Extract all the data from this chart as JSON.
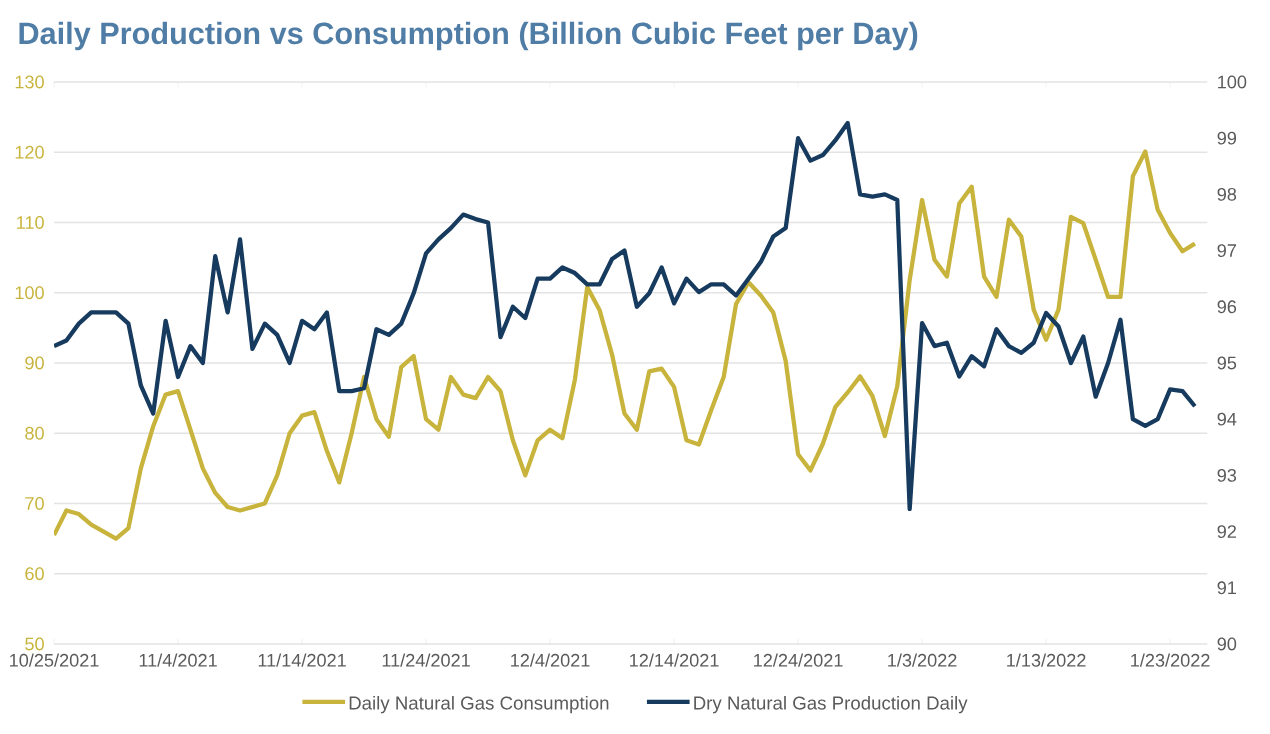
{
  "chart_data": {
    "type": "line",
    "title": "Daily Production vs Consumption (Billion Cubic Feet per Day)",
    "x": [
      "2021-10-25",
      "2021-10-26",
      "2021-10-27",
      "2021-10-28",
      "2021-10-29",
      "2021-10-30",
      "2021-10-31",
      "2021-11-01",
      "2021-11-02",
      "2021-11-03",
      "2021-11-04",
      "2021-11-05",
      "2021-11-06",
      "2021-11-07",
      "2021-11-08",
      "2021-11-09",
      "2021-11-10",
      "2021-11-11",
      "2021-11-12",
      "2021-11-13",
      "2021-11-14",
      "2021-11-15",
      "2021-11-16",
      "2021-11-17",
      "2021-11-18",
      "2021-11-19",
      "2021-11-20",
      "2021-11-21",
      "2021-11-22",
      "2021-11-23",
      "2021-11-24",
      "2021-11-25",
      "2021-11-26",
      "2021-11-27",
      "2021-11-28",
      "2021-11-29",
      "2021-11-30",
      "2021-12-01",
      "2021-12-02",
      "2021-12-03",
      "2021-12-04",
      "2021-12-05",
      "2021-12-06",
      "2021-12-07",
      "2021-12-08",
      "2021-12-09",
      "2021-12-10",
      "2021-12-11",
      "2021-12-12",
      "2021-12-13",
      "2021-12-14",
      "2021-12-15",
      "2021-12-16",
      "2021-12-17",
      "2021-12-18",
      "2021-12-19",
      "2021-12-20",
      "2021-12-21",
      "2021-12-22",
      "2021-12-23",
      "2021-12-24",
      "2021-12-25",
      "2021-12-26",
      "2021-12-27",
      "2021-12-28",
      "2021-12-29",
      "2021-12-30",
      "2021-12-31",
      "2022-01-01",
      "2022-01-02",
      "2022-01-03",
      "2022-01-04",
      "2022-01-05",
      "2022-01-06",
      "2022-01-07",
      "2022-01-08",
      "2022-01-09",
      "2022-01-10",
      "2022-01-11",
      "2022-01-12",
      "2022-01-13",
      "2022-01-14",
      "2022-01-15",
      "2022-01-16",
      "2022-01-17",
      "2022-01-18",
      "2022-01-19",
      "2022-01-20",
      "2022-01-21",
      "2022-01-22",
      "2022-01-23",
      "2022-01-24",
      "2022-01-25"
    ],
    "series": [
      {
        "name": "Daily Natural Gas Consumption",
        "color": "#c8b43c",
        "values": [
          65.5,
          69,
          68.5,
          67,
          66,
          65,
          66.5,
          75,
          81,
          85.5,
          86,
          80.5,
          75,
          71.5,
          69.5,
          69,
          69.5,
          70,
          74,
          80,
          82.5,
          83,
          77.5,
          73,
          80,
          88,
          82,
          79.5,
          89.4,
          91,
          82,
          80.5,
          88,
          85.5,
          85,
          88,
          86,
          79,
          74,
          79,
          80.5,
          79.3,
          87.6,
          100.8,
          97.5,
          91.2,
          82.8,
          80.5,
          88.8,
          89.2,
          86.6,
          79,
          78.4,
          83.3,
          88,
          98.4,
          101.5,
          99.6,
          97.2,
          90.3,
          77,
          74.7,
          78.5,
          83.7,
          85.8,
          88.1,
          85.3,
          79.6,
          86.7,
          101.8,
          113.2,
          104.7,
          102.3,
          112.7,
          115.1,
          102.3,
          99.4,
          110.4,
          108,
          97.6,
          93.3,
          97.6,
          110.8,
          109.9,
          104.7,
          99.4,
          99.4,
          116.6,
          120.1,
          111.8,
          108.5,
          105.9,
          107
        ]
      },
      {
        "name": "Dry Natural Gas Production Daily",
        "color": "#173b5f",
        "axis": "y2",
        "values": [
          95.3,
          95.4,
          95.7,
          95.9,
          95.9,
          95.9,
          95.7,
          94.6,
          94.1,
          95.75,
          94.75,
          95.3,
          95.0,
          96.9,
          95.9,
          97.2,
          95.25,
          95.7,
          95.5,
          95.0,
          95.75,
          95.6,
          95.9,
          94.5,
          94.5,
          94.55,
          95.6,
          95.5,
          95.7,
          96.24,
          96.95,
          97.2,
          97.4,
          97.64,
          97.56,
          97.5,
          95.46,
          96.0,
          95.8,
          96.5,
          96.5,
          96.7,
          96.6,
          96.4,
          96.4,
          96.85,
          97.0,
          96.0,
          96.24,
          96.7,
          96.06,
          96.5,
          96.26,
          96.4,
          96.4,
          96.2,
          96.5,
          96.8,
          97.25,
          97.4,
          99.0,
          98.6,
          98.7,
          98.96,
          99.27,
          98.0,
          97.96,
          98.0,
          97.9,
          92.4,
          95.71,
          95.3,
          95.36,
          94.76,
          95.12,
          94.94,
          95.6,
          95.3,
          95.18,
          95.36,
          95.89,
          95.65,
          95.0,
          95.47,
          94.4,
          95.0,
          95.77,
          94.0,
          93.88,
          94.0,
          94.53,
          94.5,
          94.23
        ]
      }
    ],
    "xlim": [
      "2021-10-25",
      "2022-01-26"
    ],
    "xticks": [
      {
        "value": "2021-10-25",
        "label": "10/25/2021"
      },
      {
        "value": "2021-11-04",
        "label": "11/4/2021"
      },
      {
        "value": "2021-11-14",
        "label": "11/14/2021"
      },
      {
        "value": "2021-11-24",
        "label": "11/24/2021"
      },
      {
        "value": "2021-12-04",
        "label": "12/4/2021"
      },
      {
        "value": "2021-12-14",
        "label": "12/14/2021"
      },
      {
        "value": "2021-12-24",
        "label": "12/24/2021"
      },
      {
        "value": "2022-01-03",
        "label": "1/3/2022"
      },
      {
        "value": "2022-01-13",
        "label": "1/13/2022"
      },
      {
        "value": "2022-01-23",
        "label": "1/23/2022"
      }
    ],
    "ylim": [
      50,
      130
    ],
    "yticks": [
      50,
      60,
      70,
      80,
      90,
      100,
      110,
      120,
      130
    ],
    "y2lim": [
      90,
      100
    ],
    "y2ticks": [
      90,
      91,
      92,
      93,
      94,
      95,
      96,
      97,
      98,
      99,
      100
    ],
    "grid": "y",
    "legend": "bottom"
  }
}
